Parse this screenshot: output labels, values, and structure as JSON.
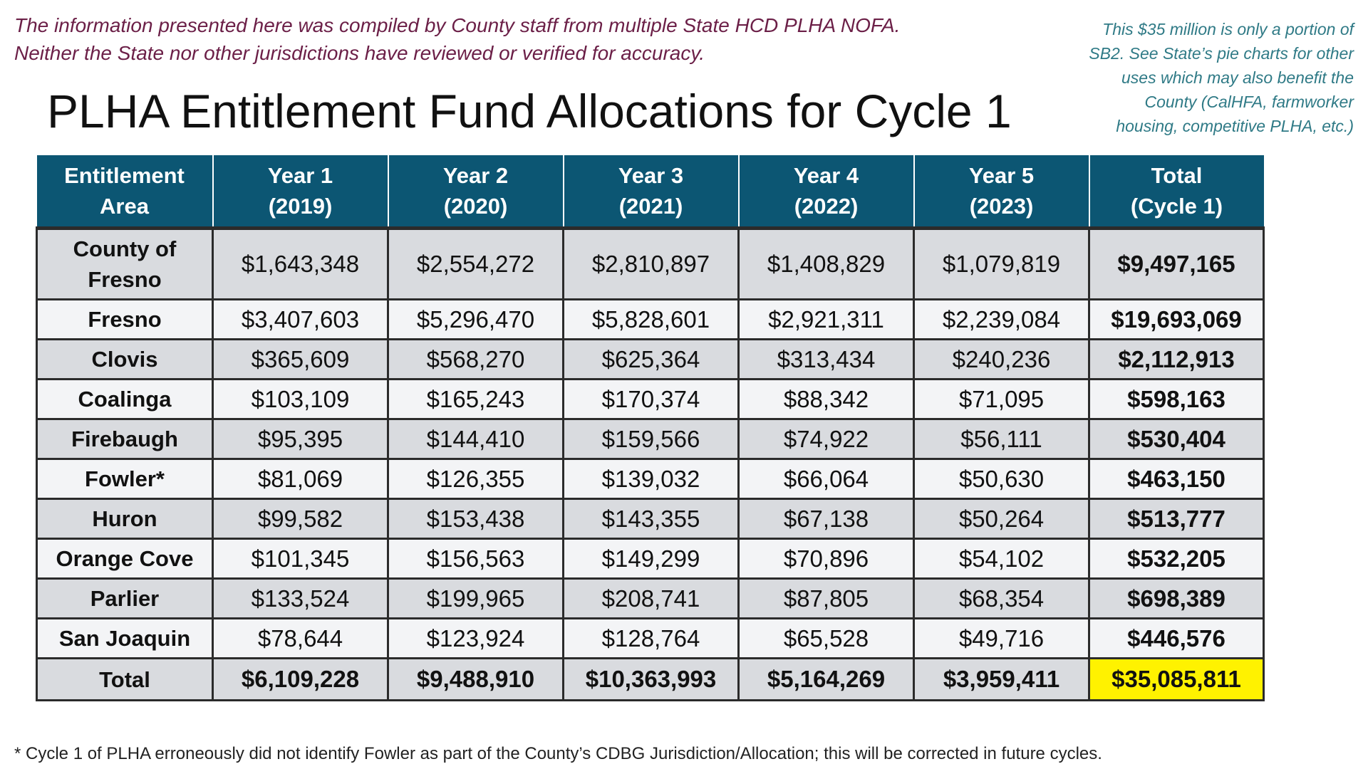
{
  "disclaimer": {
    "line1": "The information presented here was compiled by County staff from multiple State HCD PLHA NOFA.",
    "line2": "Neither the State nor other jurisdictions have reviewed or verified for accuracy."
  },
  "side_note": {
    "line1": "This $35 million is only a portion of",
    "line2": "SB2. See State’s pie charts for other",
    "line3": "uses which may also benefit the",
    "line4": "County (CalHFA, farmworker",
    "line5": "housing, competitive PLHA, etc.)"
  },
  "title": "PLHA Entitlement Fund Allocations for Cycle 1",
  "colors": {
    "header_bg": "#0c5673",
    "disclaimer_text": "#6b1f47",
    "side_note_text": "#2f7a86",
    "row_shade_dark": "#d9dbdf",
    "row_shade_light": "#f3f4f6",
    "grand_total_highlight": "#fff200"
  },
  "table": {
    "headers": [
      {
        "line1": "Entitlement",
        "line2": "Area"
      },
      {
        "line1": "Year 1",
        "line2": "(2019)"
      },
      {
        "line1": "Year 2",
        "line2": "(2020)"
      },
      {
        "line1": "Year 3",
        "line2": "(2021)"
      },
      {
        "line1": "Year 4",
        "line2": "(2022)"
      },
      {
        "line1": "Year 5",
        "line2": "(2023)"
      },
      {
        "line1": "Total",
        "line2": "(Cycle 1)"
      }
    ],
    "rows": [
      {
        "area_line1": "County of",
        "area_line2": "Fresno",
        "values": [
          "$1,643,348",
          "$2,554,272",
          "$2,810,897",
          "$1,408,829",
          "$1,079,819",
          "$9,497,165"
        ]
      },
      {
        "area_line1": "Fresno",
        "values": [
          "$3,407,603",
          "$5,296,470",
          "$5,828,601",
          "$2,921,311",
          "$2,239,084",
          "$19,693,069"
        ]
      },
      {
        "area_line1": "Clovis",
        "values": [
          "$365,609",
          "$568,270",
          "$625,364",
          "$313,434",
          "$240,236",
          "$2,112,913"
        ]
      },
      {
        "area_line1": "Coalinga",
        "values": [
          "$103,109",
          "$165,243",
          "$170,374",
          "$88,342",
          "$71,095",
          "$598,163"
        ]
      },
      {
        "area_line1": "Firebaugh",
        "values": [
          "$95,395",
          "$144,410",
          "$159,566",
          "$74,922",
          "$56,111",
          "$530,404"
        ]
      },
      {
        "area_line1": "Fowler*",
        "values": [
          "$81,069",
          "$126,355",
          "$139,032",
          "$66,064",
          "$50,630",
          "$463,150"
        ]
      },
      {
        "area_line1": "Huron",
        "values": [
          "$99,582",
          "$153,438",
          "$143,355",
          "$67,138",
          "$50,264",
          "$513,777"
        ]
      },
      {
        "area_line1": "Orange Cove",
        "values": [
          "$101,345",
          "$156,563",
          "$149,299",
          "$70,896",
          "$54,102",
          "$532,205"
        ]
      },
      {
        "area_line1": "Parlier",
        "values": [
          "$133,524",
          "$199,965",
          "$208,741",
          "$87,805",
          "$68,354",
          "$698,389"
        ]
      },
      {
        "area_line1": "San Joaquin",
        "values": [
          "$78,644",
          "$123,924",
          "$128,764",
          "$65,528",
          "$49,716",
          "$446,576"
        ]
      }
    ],
    "grand_total": {
      "label": "Total",
      "values": [
        "$6,109,228",
        "$9,488,910",
        "$10,363,993",
        "$5,164,269",
        "$3,959,411",
        "$35,085,811"
      ]
    }
  },
  "footnote": "* Cycle 1 of PLHA erroneously did not identify Fowler as part of the County’s CDBG Jurisdiction/Allocation; this will be corrected in future cycles."
}
